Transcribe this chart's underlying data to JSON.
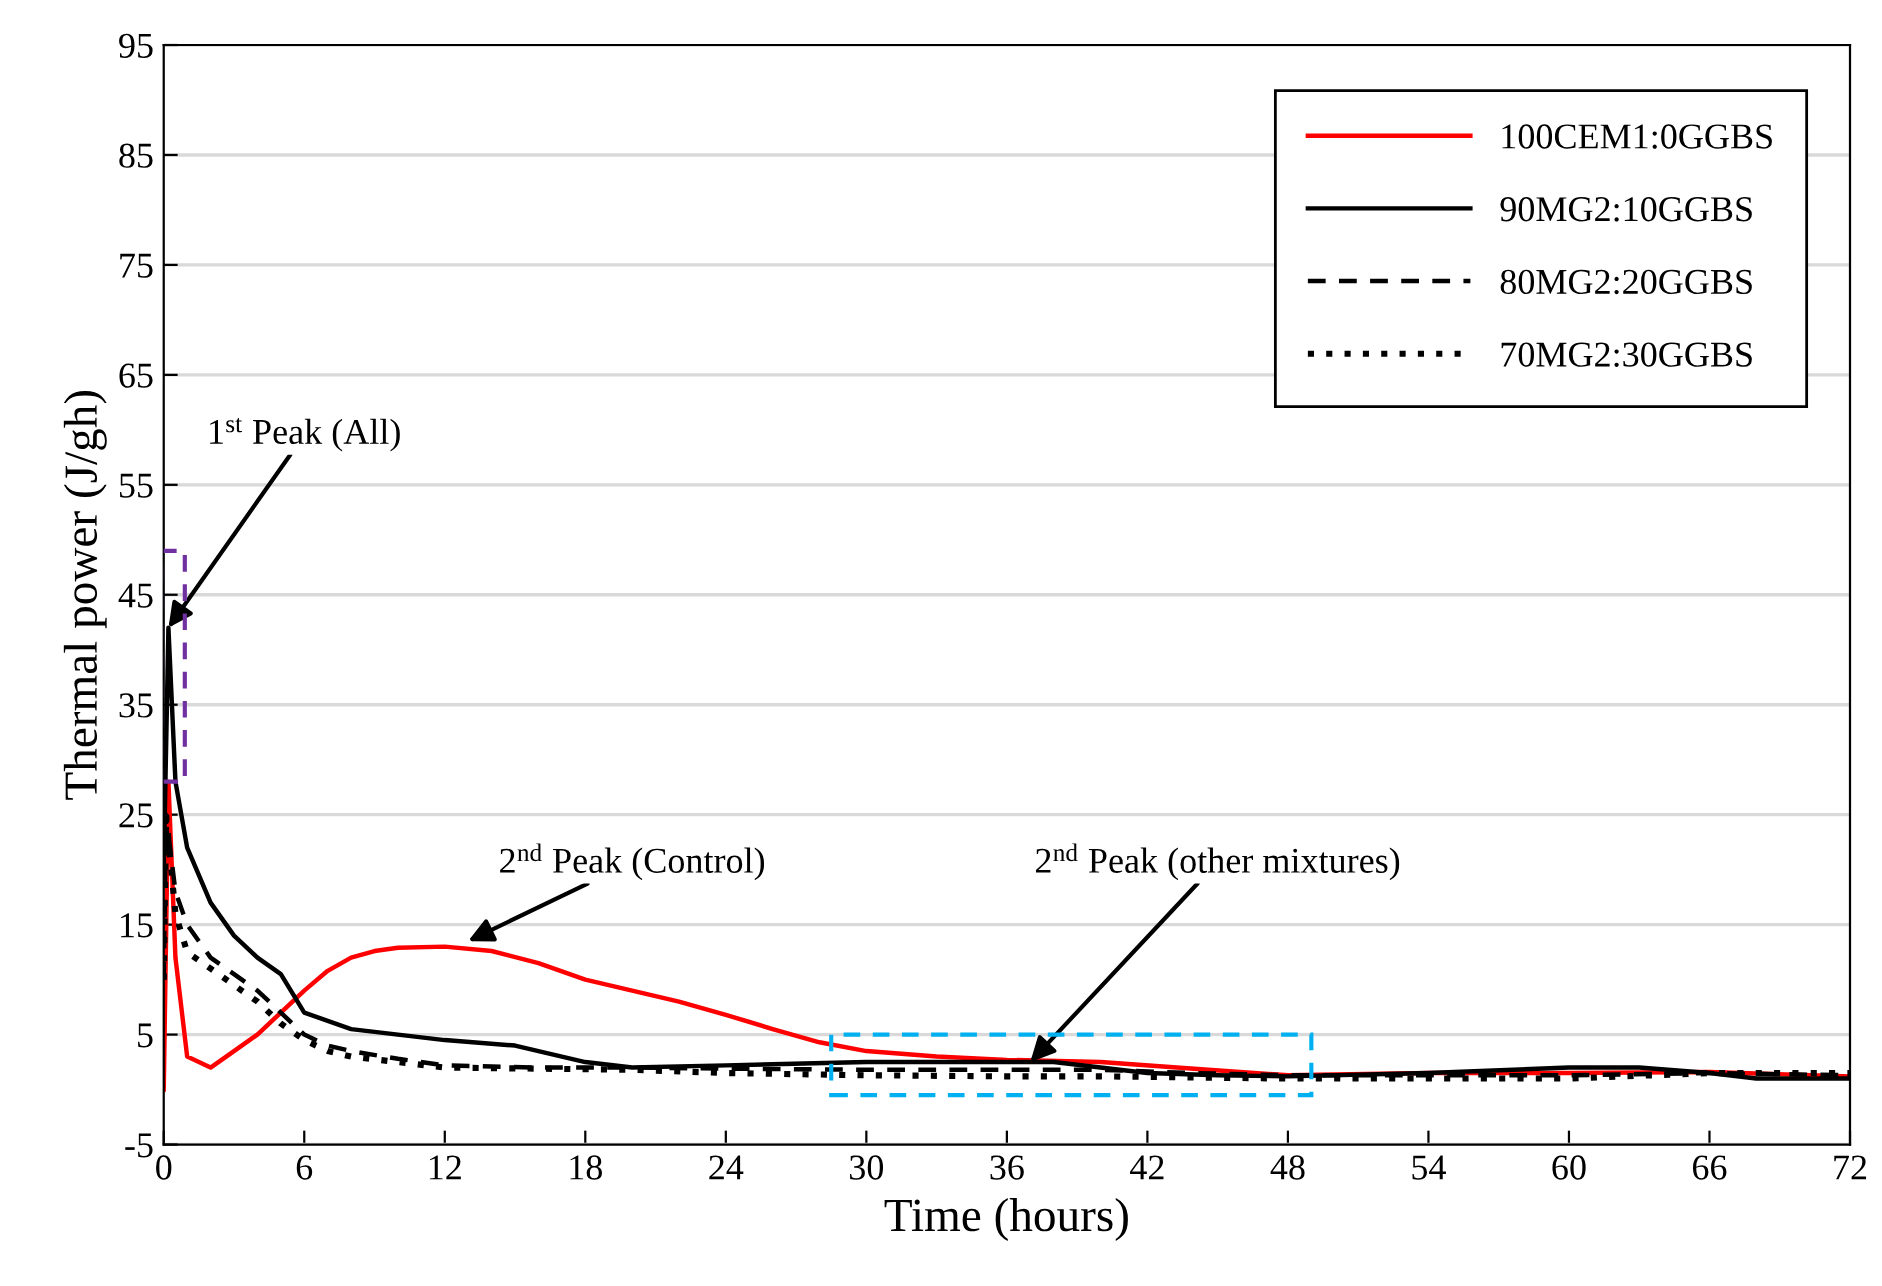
{
  "chart_data": {
    "type": "line",
    "xlabel": "Time (hours)",
    "ylabel": "Thermal power (J/gh)",
    "xlim": [
      0,
      72
    ],
    "xticks": [
      0,
      6,
      12,
      18,
      24,
      30,
      36,
      42,
      48,
      54,
      60,
      66,
      72
    ],
    "ylim": [
      -5,
      95
    ],
    "yticks": [
      -5,
      5,
      15,
      25,
      35,
      45,
      55,
      65,
      75,
      85,
      95
    ],
    "grid": "y",
    "legend": "top right",
    "marker": "none",
    "series": [
      {
        "name": "100CEM1:0GGBS",
        "color": "#ff0000",
        "line_style": "solid",
        "x": [
          0,
          0.2,
          0.5,
          1,
          2,
          3,
          4,
          5,
          6,
          7,
          8,
          9,
          10,
          12,
          14,
          16,
          18,
          20,
          22,
          24,
          26,
          28,
          30,
          33,
          36,
          40,
          44,
          48,
          54,
          60,
          66,
          72
        ],
        "values": [
          0,
          28,
          12,
          3,
          2,
          3.5,
          5,
          7,
          9,
          10.8,
          12,
          12.6,
          12.9,
          13,
          12.6,
          11.5,
          10,
          9,
          8,
          6.8,
          5.5,
          4.3,
          3.5,
          3,
          2.7,
          2.5,
          1.9,
          1.3,
          1.5,
          1.5,
          1.6,
          1.2
        ]
      },
      {
        "name": "90MG2:10GGBS",
        "color": "#000000",
        "line_style": "solid",
        "x": [
          0,
          0.2,
          0.5,
          1,
          2,
          3,
          4,
          5,
          6,
          8,
          10,
          12,
          15,
          16,
          18,
          20,
          24,
          30,
          36,
          38,
          40,
          42,
          45,
          48,
          54,
          60,
          63,
          66,
          68,
          72
        ],
        "values": [
          20,
          42,
          28,
          22,
          17,
          14,
          12,
          10.5,
          7,
          5.5,
          5,
          4.5,
          4,
          3.5,
          2.5,
          2,
          2.2,
          2.5,
          2.5,
          2.5,
          2,
          1.5,
          1.3,
          1.2,
          1.5,
          2,
          2,
          1.5,
          1,
          1
        ]
      },
      {
        "name": "80MG2:20GGBS",
        "color": "#000000",
        "line_style": "dashed",
        "x": [
          0,
          0.1,
          0.5,
          1,
          2,
          3,
          4,
          5,
          6,
          7,
          8,
          10,
          12,
          16,
          20,
          24,
          30,
          36,
          40,
          44,
          48,
          54,
          60,
          66,
          72
        ],
        "values": [
          10,
          25,
          18,
          15,
          12,
          10.5,
          9,
          7,
          5,
          4,
          3.5,
          2.8,
          2.2,
          2,
          2,
          1.9,
          1.8,
          1.8,
          1.8,
          1.5,
          1.3,
          1.3,
          1.3,
          1.5,
          1.3
        ]
      },
      {
        "name": "70MG2:30GGBS",
        "color": "#000000",
        "line_style": "dotted",
        "x": [
          0,
          0.1,
          0.5,
          1,
          2,
          3,
          4,
          5,
          6,
          7,
          8,
          10,
          12,
          16,
          20,
          24,
          30,
          36,
          40,
          44,
          48,
          54,
          60,
          66,
          72
        ],
        "values": [
          10,
          25,
          16,
          12.5,
          11,
          9.5,
          8,
          6,
          4.5,
          3.5,
          3,
          2.5,
          2,
          1.9,
          1.8,
          1.5,
          1.3,
          1.2,
          1.2,
          1.1,
          1,
          1,
          1,
          1.5,
          1.5
        ]
      }
    ],
    "annotations": [
      {
        "text": "1$^{st}$ Peak (All)",
        "x": 0.2,
        "y": 42
      },
      {
        "text": "2$^{nd}$ Peak (Control)",
        "x": 13,
        "y": 13.5
      },
      {
        "text": "2$^{nd}$ Peak (other mixtures)",
        "x": 37,
        "y": 2.5
      }
    ]
  }
}
